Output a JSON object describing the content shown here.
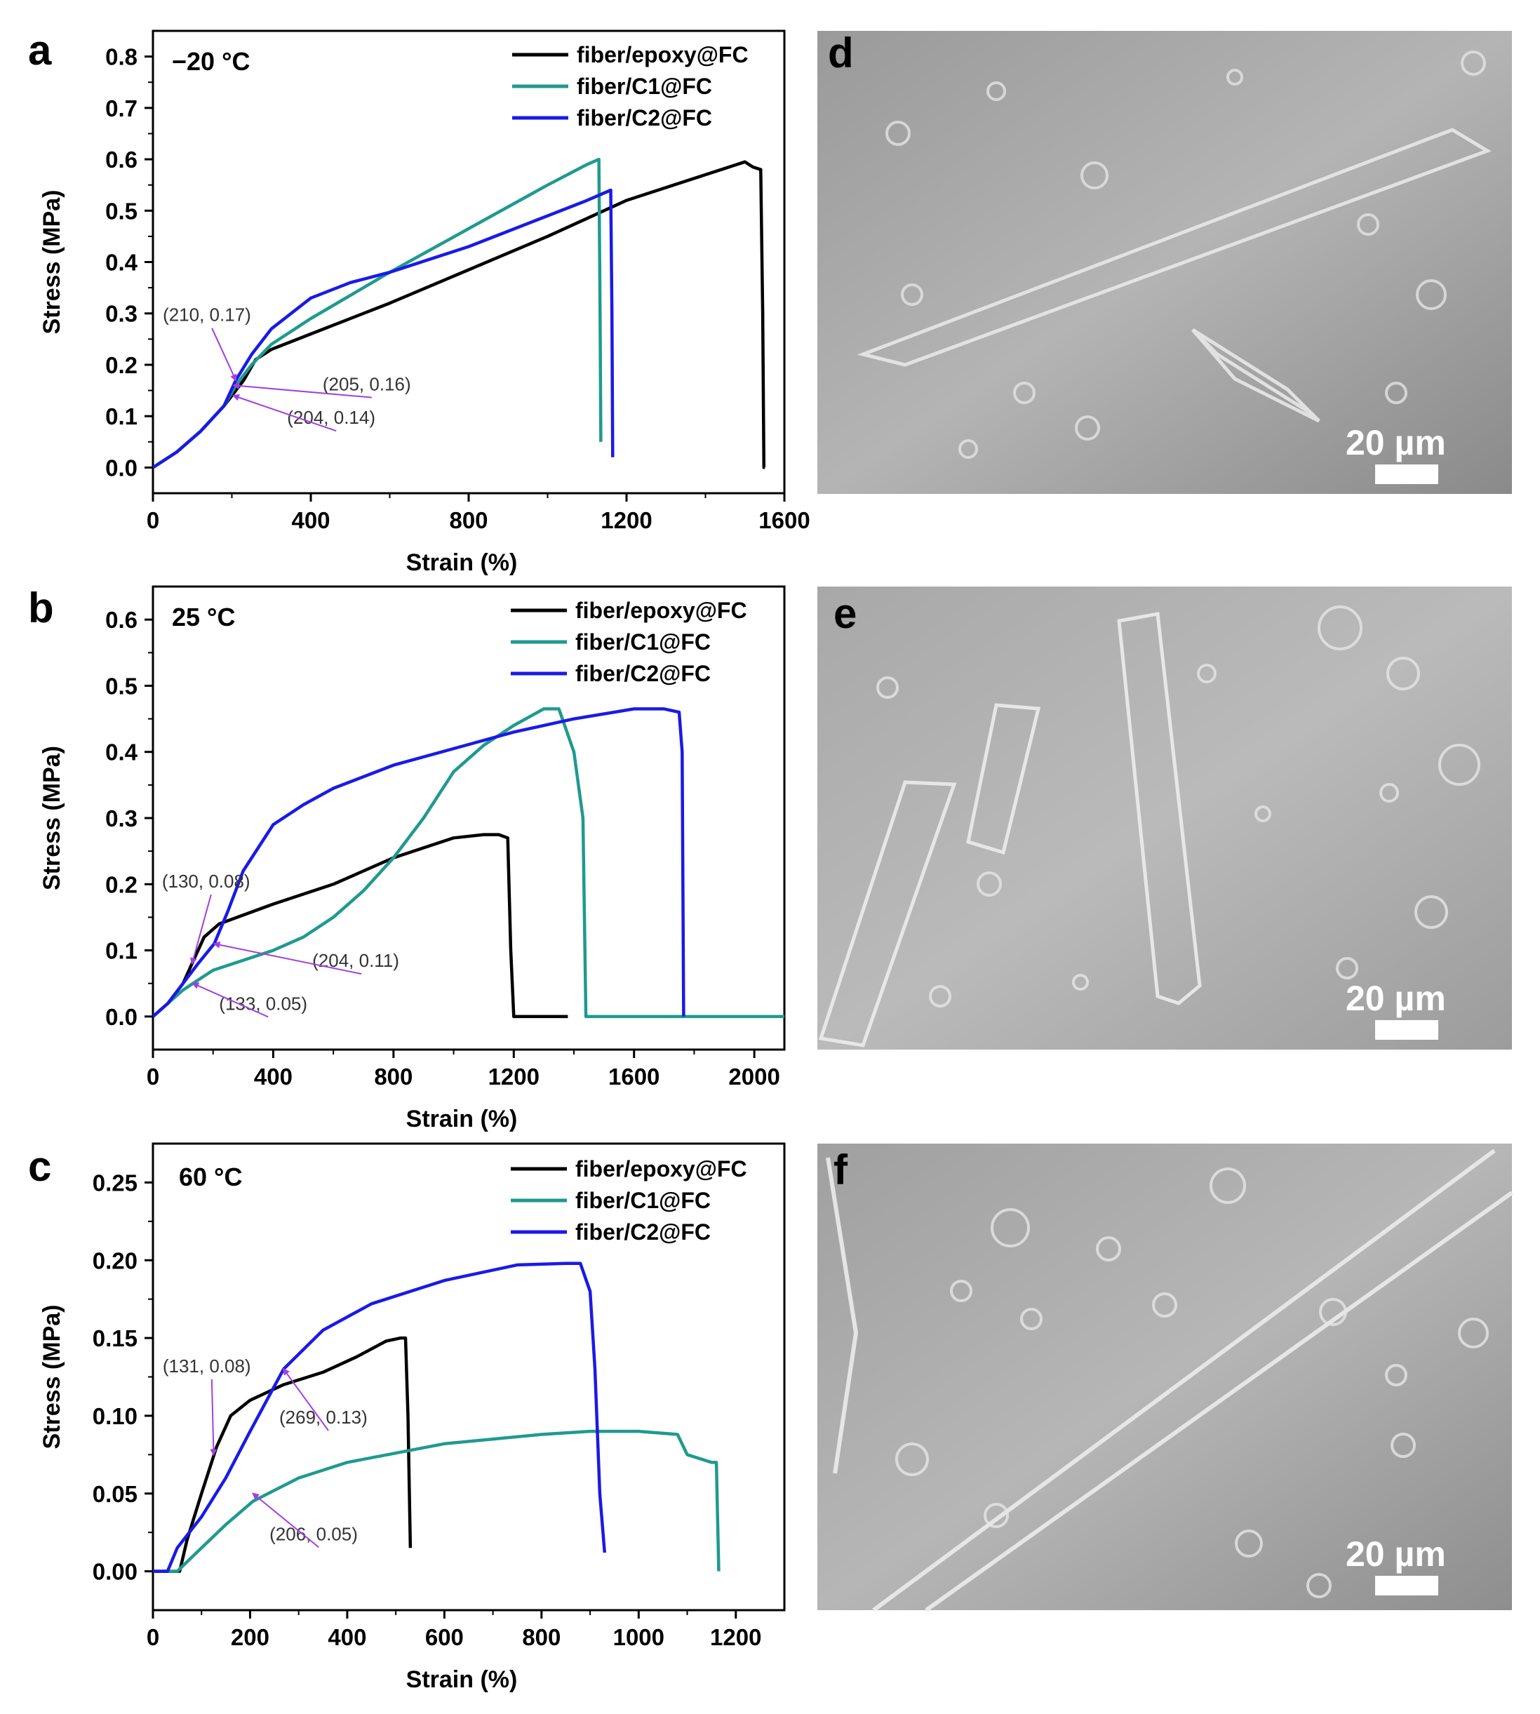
{
  "colors": {
    "fiber_epoxy": "#000000",
    "fiber_c1": "#1f9a8f",
    "fiber_c2": "#1a1ae6",
    "annotation_arrow": "#a040e0"
  },
  "chart_data": [
    {
      "panel": "a",
      "type": "line",
      "condition_label": "−20 °C",
      "xlabel": "Strain (%)",
      "ylabel": "Stress (MPa)",
      "xlim": [
        0,
        1600
      ],
      "ylim": [
        -0.05,
        0.85
      ],
      "xticks": [
        0,
        400,
        800,
        1200,
        1600
      ],
      "yticks": [
        0.0,
        0.1,
        0.2,
        0.3,
        0.4,
        0.5,
        0.6,
        0.7,
        0.8
      ],
      "ytick_labels": [
        "0.0",
        "0.1",
        "0.2",
        "0.3",
        "0.4",
        "0.5",
        "0.6",
        "0.7",
        "0.8"
      ],
      "legend": "top-right",
      "series": [
        {
          "name": "fiber/epoxy@FC",
          "color_key": "fiber_epoxy",
          "points": [
            [
              0,
              0
            ],
            [
              60,
              0.03
            ],
            [
              120,
              0.07
            ],
            [
              180,
              0.12
            ],
            [
              230,
              0.17
            ],
            [
              260,
              0.21
            ],
            [
              300,
              0.23
            ],
            [
              400,
              0.26
            ],
            [
              600,
              0.32
            ],
            [
              800,
              0.385
            ],
            [
              1000,
              0.45
            ],
            [
              1200,
              0.52
            ],
            [
              1400,
              0.57
            ],
            [
              1480,
              0.59
            ],
            [
              1500,
              0.595
            ],
            [
              1520,
              0.585
            ],
            [
              1540,
              0.58
            ],
            [
              1545,
              0.3
            ],
            [
              1548,
              0.0
            ],
            [
              1550,
              0.0
            ]
          ]
        },
        {
          "name": "fiber/C1@FC",
          "color_key": "fiber_c1",
          "points": [
            [
              0,
              0
            ],
            [
              60,
              0.03
            ],
            [
              120,
              0.07
            ],
            [
              180,
              0.12
            ],
            [
              210,
              0.16
            ],
            [
              250,
              0.2
            ],
            [
              300,
              0.24
            ],
            [
              400,
              0.29
            ],
            [
              600,
              0.38
            ],
            [
              800,
              0.465
            ],
            [
              1000,
              0.55
            ],
            [
              1100,
              0.59
            ],
            [
              1130,
              0.6
            ],
            [
              1133,
              0.3
            ],
            [
              1135,
              0.05
            ]
          ]
        },
        {
          "name": "fiber/C2@FC",
          "color_key": "fiber_c2",
          "points": [
            [
              0,
              0
            ],
            [
              60,
              0.03
            ],
            [
              120,
              0.07
            ],
            [
              180,
              0.12
            ],
            [
              210,
              0.17
            ],
            [
              250,
              0.22
            ],
            [
              300,
              0.27
            ],
            [
              400,
              0.33
            ],
            [
              500,
              0.36
            ],
            [
              600,
              0.38
            ],
            [
              800,
              0.43
            ],
            [
              1000,
              0.49
            ],
            [
              1100,
              0.52
            ],
            [
              1160,
              0.54
            ],
            [
              1163,
              0.3
            ],
            [
              1165,
              0.02
            ]
          ]
        }
      ],
      "annotations": [
        {
          "text": "(210, 0.17)",
          "x": 210,
          "y": 0.17,
          "label_x": 25,
          "label_y": 0.285
        },
        {
          "text": "(205, 0.16)",
          "x": 205,
          "y": 0.16,
          "label_x": 430,
          "label_y": 0.15
        },
        {
          "text": "(204, 0.14)",
          "x": 204,
          "y": 0.14,
          "label_x": 340,
          "label_y": 0.085
        }
      ]
    },
    {
      "panel": "b",
      "type": "line",
      "condition_label": "25 °C",
      "xlabel": "Strain (%)",
      "ylabel": "Stress (MPa)",
      "xlim": [
        0,
        2100
      ],
      "ylim": [
        -0.05,
        0.65
      ],
      "xticks": [
        0,
        400,
        800,
        1200,
        1600,
        2000
      ],
      "yticks": [
        0.0,
        0.1,
        0.2,
        0.3,
        0.4,
        0.5,
        0.6
      ],
      "ytick_labels": [
        "0.0",
        "0.1",
        "0.2",
        "0.3",
        "0.4",
        "0.5",
        "0.6"
      ],
      "legend": "top-right",
      "series": [
        {
          "name": "fiber/epoxy@FC",
          "color_key": "fiber_epoxy",
          "points": [
            [
              0,
              0
            ],
            [
              50,
              0.02
            ],
            [
              100,
              0.05
            ],
            [
              130,
              0.08
            ],
            [
              170,
              0.12
            ],
            [
              220,
              0.14
            ],
            [
              400,
              0.17
            ],
            [
              600,
              0.2
            ],
            [
              800,
              0.24
            ],
            [
              1000,
              0.27
            ],
            [
              1100,
              0.275
            ],
            [
              1150,
              0.275
            ],
            [
              1180,
              0.27
            ],
            [
              1190,
              0.1
            ],
            [
              1200,
              0.0
            ],
            [
              1380,
              0.0
            ]
          ]
        },
        {
          "name": "fiber/C1@FC",
          "color_key": "fiber_c1",
          "points": [
            [
              0,
              0
            ],
            [
              50,
              0.02
            ],
            [
              100,
              0.04
            ],
            [
              133,
              0.05
            ],
            [
              200,
              0.07
            ],
            [
              300,
              0.085
            ],
            [
              400,
              0.1
            ],
            [
              500,
              0.12
            ],
            [
              600,
              0.15
            ],
            [
              700,
              0.19
            ],
            [
              800,
              0.24
            ],
            [
              900,
              0.3
            ],
            [
              1000,
              0.37
            ],
            [
              1100,
              0.41
            ],
            [
              1200,
              0.44
            ],
            [
              1300,
              0.465
            ],
            [
              1350,
              0.465
            ],
            [
              1400,
              0.4
            ],
            [
              1430,
              0.3
            ],
            [
              1440,
              0.0
            ],
            [
              2100,
              0.0
            ]
          ]
        },
        {
          "name": "fiber/C2@FC",
          "color_key": "fiber_c2",
          "points": [
            [
              0,
              0
            ],
            [
              50,
              0.02
            ],
            [
              100,
              0.05
            ],
            [
              150,
              0.08
            ],
            [
              204,
              0.11
            ],
            [
              250,
              0.16
            ],
            [
              300,
              0.22
            ],
            [
              400,
              0.29
            ],
            [
              500,
              0.32
            ],
            [
              600,
              0.345
            ],
            [
              800,
              0.38
            ],
            [
              1000,
              0.405
            ],
            [
              1200,
              0.43
            ],
            [
              1400,
              0.45
            ],
            [
              1600,
              0.465
            ],
            [
              1700,
              0.465
            ],
            [
              1750,
              0.46
            ],
            [
              1760,
              0.4
            ],
            [
              1765,
              0.0
            ]
          ]
        }
      ],
      "annotations": [
        {
          "text": "(130, 0.08)",
          "x": 130,
          "y": 0.08,
          "label_x": 30,
          "label_y": 0.195
        },
        {
          "text": "(204, 0.11)",
          "x": 204,
          "y": 0.11,
          "label_x": 530,
          "label_y": 0.075
        },
        {
          "text": "(133, 0.05)",
          "x": 133,
          "y": 0.05,
          "label_x": 220,
          "label_y": 0.01
        }
      ]
    },
    {
      "panel": "c",
      "type": "line",
      "condition_label": "60 °C",
      "xlabel": "Strain (%)",
      "ylabel": "Stress (MPa)",
      "xlim": [
        0,
        1300
      ],
      "ylim": [
        -0.025,
        0.275
      ],
      "xticks": [
        0,
        200,
        400,
        600,
        800,
        1000,
        1200
      ],
      "yticks": [
        0.0,
        0.05,
        0.1,
        0.15,
        0.2,
        0.25
      ],
      "ytick_labels": [
        "0.00",
        "0.05",
        "0.10",
        "0.15",
        "0.20",
        "0.25"
      ],
      "legend": "top-right",
      "series": [
        {
          "name": "fiber/epoxy@FC",
          "color_key": "fiber_epoxy",
          "points": [
            [
              0,
              0
            ],
            [
              55,
              0.0
            ],
            [
              70,
              0.02
            ],
            [
              100,
              0.05
            ],
            [
              131,
              0.08
            ],
            [
              160,
              0.1
            ],
            [
              200,
              0.11
            ],
            [
              269,
              0.12
            ],
            [
              350,
              0.128
            ],
            [
              420,
              0.138
            ],
            [
              480,
              0.148
            ],
            [
              510,
              0.15
            ],
            [
              520,
              0.15
            ],
            [
              525,
              0.1
            ],
            [
              530,
              0.015
            ]
          ]
        },
        {
          "name": "fiber/C1@FC",
          "color_key": "fiber_c1",
          "points": [
            [
              0,
              0
            ],
            [
              50,
              0.0
            ],
            [
              100,
              0.015
            ],
            [
              150,
              0.03
            ],
            [
              206,
              0.045
            ],
            [
              300,
              0.06
            ],
            [
              400,
              0.07
            ],
            [
              600,
              0.082
            ],
            [
              800,
              0.088
            ],
            [
              900,
              0.09
            ],
            [
              1000,
              0.09
            ],
            [
              1080,
              0.088
            ],
            [
              1100,
              0.075
            ],
            [
              1150,
              0.07
            ],
            [
              1160,
              0.07
            ],
            [
              1162,
              0.04
            ],
            [
              1165,
              0.0
            ]
          ]
        },
        {
          "name": "fiber/C2@FC",
          "color_key": "fiber_c2",
          "points": [
            [
              0,
              0
            ],
            [
              30,
              0.0
            ],
            [
              50,
              0.015
            ],
            [
              100,
              0.035
            ],
            [
              150,
              0.06
            ],
            [
              200,
              0.09
            ],
            [
              269,
              0.13
            ],
            [
              350,
              0.155
            ],
            [
              450,
              0.172
            ],
            [
              600,
              0.187
            ],
            [
              750,
              0.197
            ],
            [
              850,
              0.198
            ],
            [
              880,
              0.198
            ],
            [
              900,
              0.18
            ],
            [
              910,
              0.13
            ],
            [
              920,
              0.05
            ],
            [
              930,
              0.012
            ]
          ]
        }
      ],
      "annotations": [
        {
          "text": "(131, 0.08)",
          "x": 125,
          "y": 0.075,
          "label_x": 20,
          "label_y": 0.128
        },
        {
          "text": "(269, 0.13)",
          "x": 269,
          "y": 0.13,
          "label_x": 260,
          "label_y": 0.095
        },
        {
          "text": "(206, 0.05)",
          "x": 206,
          "y": 0.05,
          "label_x": 240,
          "label_y": 0.02
        }
      ]
    }
  ],
  "sem_panels": [
    {
      "panel": "d",
      "scale_label": "20 µm"
    },
    {
      "panel": "e",
      "scale_label": "20 µm"
    },
    {
      "panel": "f",
      "scale_label": "20 µm"
    }
  ]
}
